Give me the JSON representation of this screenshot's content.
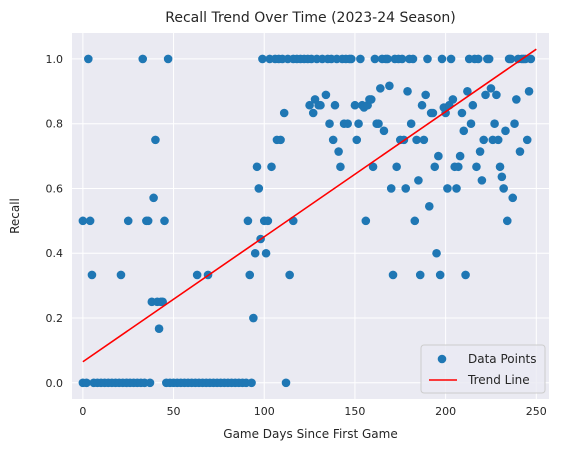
{
  "chart_data": {
    "type": "scatter",
    "title": "Recall Trend Over Time (2023-24 Season)",
    "xlabel": "Game Days Since First Game",
    "ylabel": "Recall",
    "xlim": [
      -6,
      257
    ],
    "ylim": [
      -0.05,
      1.08
    ],
    "xticks": [
      0,
      50,
      100,
      150,
      200,
      250
    ],
    "yticks": [
      0.0,
      0.2,
      0.4,
      0.6,
      0.8,
      1.0
    ],
    "grid": true,
    "legend_position": "lower right",
    "colors": {
      "points": "#1f77b4",
      "trend": "#ff0000",
      "background": "#eaeaf2",
      "grid": "#ffffff"
    },
    "series": [
      {
        "name": "Data Points",
        "kind": "scatter",
        "points": [
          [
            0,
            0.5
          ],
          [
            0,
            0
          ],
          [
            2,
            0
          ],
          [
            3,
            1.0
          ],
          [
            4,
            0.5
          ],
          [
            5,
            0.333
          ],
          [
            6,
            0
          ],
          [
            8,
            0
          ],
          [
            10,
            0
          ],
          [
            12,
            0
          ],
          [
            14,
            0
          ],
          [
            16,
            0
          ],
          [
            18,
            0
          ],
          [
            20,
            0
          ],
          [
            21,
            0.333
          ],
          [
            22,
            0
          ],
          [
            24,
            0
          ],
          [
            25,
            0.5
          ],
          [
            26,
            0
          ],
          [
            28,
            0
          ],
          [
            30,
            0
          ],
          [
            32,
            0
          ],
          [
            33,
            1.0
          ],
          [
            34,
            0
          ],
          [
            35,
            0.5
          ],
          [
            36,
            0.5
          ],
          [
            37,
            0
          ],
          [
            38,
            0.25
          ],
          [
            39,
            0.571
          ],
          [
            40,
            0.75
          ],
          [
            41,
            0.25
          ],
          [
            42,
            0.167
          ],
          [
            43,
            0.25
          ],
          [
            44,
            0.25
          ],
          [
            45,
            0.5
          ],
          [
            46,
            0
          ],
          [
            47,
            1.0
          ],
          [
            48,
            0
          ],
          [
            50,
            0
          ],
          [
            52,
            0
          ],
          [
            54,
            0
          ],
          [
            56,
            0
          ],
          [
            58,
            0
          ],
          [
            60,
            0
          ],
          [
            62,
            0
          ],
          [
            63,
            0.333
          ],
          [
            64,
            0
          ],
          [
            66,
            0
          ],
          [
            68,
            0
          ],
          [
            69,
            0.333
          ],
          [
            70,
            0
          ],
          [
            72,
            0
          ],
          [
            74,
            0
          ],
          [
            76,
            0
          ],
          [
            78,
            0
          ],
          [
            80,
            0
          ],
          [
            82,
            0
          ],
          [
            84,
            0
          ],
          [
            86,
            0
          ],
          [
            88,
            0
          ],
          [
            90,
            0
          ],
          [
            91,
            0.5
          ],
          [
            92,
            0.333
          ],
          [
            93,
            0
          ],
          [
            94,
            0.2
          ],
          [
            95,
            0.4
          ],
          [
            96,
            0.667
          ],
          [
            97,
            0.6
          ],
          [
            98,
            0.444
          ],
          [
            99,
            1.0
          ],
          [
            100,
            0.5
          ],
          [
            101,
            0.4
          ],
          [
            102,
            0.5
          ],
          [
            103,
            1.0
          ],
          [
            104,
            0.667
          ],
          [
            106,
            1.0
          ],
          [
            107,
            0.75
          ],
          [
            108,
            1.0
          ],
          [
            109,
            0.75
          ],
          [
            110,
            1.0
          ],
          [
            111,
            0.833
          ],
          [
            112,
            0
          ],
          [
            113,
            1.0
          ],
          [
            114,
            0.333
          ],
          [
            116,
            1.0
          ],
          [
            116,
            0.5
          ],
          [
            118,
            1.0
          ],
          [
            120,
            1.0
          ],
          [
            122,
            1.0
          ],
          [
            124,
            1.0
          ],
          [
            125,
            0.857
          ],
          [
            126,
            1.0
          ],
          [
            127,
            0.833
          ],
          [
            128,
            0.875
          ],
          [
            129,
            1.0
          ],
          [
            130,
            0.857
          ],
          [
            131,
            0.857
          ],
          [
            132,
            1.0
          ],
          [
            134,
            0.889
          ],
          [
            135,
            1.0
          ],
          [
            136,
            0.8
          ],
          [
            137,
            1.0
          ],
          [
            138,
            0.75
          ],
          [
            139,
            0.857
          ],
          [
            140,
            1.0
          ],
          [
            141,
            0.714
          ],
          [
            142,
            0.667
          ],
          [
            143,
            1.0
          ],
          [
            144,
            0.8
          ],
          [
            145,
            1.0
          ],
          [
            146,
            0.8
          ],
          [
            147,
            1.0
          ],
          [
            148,
            1.0
          ],
          [
            150,
            0.857
          ],
          [
            151,
            0.75
          ],
          [
            152,
            0.8
          ],
          [
            153,
            1.0
          ],
          [
            154,
            0.857
          ],
          [
            155,
            0.85
          ],
          [
            156,
            0.5
          ],
          [
            157,
            0.857
          ],
          [
            158,
            0.875
          ],
          [
            159,
            0.875
          ],
          [
            160,
            0.667
          ],
          [
            161,
            1.0
          ],
          [
            162,
            0.8
          ],
          [
            163,
            0.8
          ],
          [
            164,
            0.909
          ],
          [
            165,
            1.0
          ],
          [
            166,
            0.778
          ],
          [
            167,
            1.0
          ],
          [
            168,
            1.0
          ],
          [
            169,
            0.917
          ],
          [
            170,
            0.6
          ],
          [
            171,
            0.333
          ],
          [
            172,
            1.0
          ],
          [
            173,
            0.667
          ],
          [
            174,
            1.0
          ],
          [
            175,
            0.75
          ],
          [
            176,
            1.0
          ],
          [
            177,
            0.75
          ],
          [
            178,
            0.6
          ],
          [
            179,
            0.9
          ],
          [
            180,
            1.0
          ],
          [
            181,
            0.8
          ],
          [
            182,
            1.0
          ],
          [
            183,
            0.5
          ],
          [
            184,
            0.75
          ],
          [
            185,
            0.625
          ],
          [
            186,
            0.333
          ],
          [
            187,
            0.857
          ],
          [
            188,
            0.75
          ],
          [
            189,
            0.889
          ],
          [
            190,
            1.0
          ],
          [
            191,
            0.545
          ],
          [
            192,
            0.833
          ],
          [
            193,
            0.833
          ],
          [
            194,
            0.667
          ],
          [
            195,
            0.4
          ],
          [
            196,
            0.7
          ],
          [
            197,
            0.333
          ],
          [
            198,
            1.0
          ],
          [
            199,
            0.85
          ],
          [
            200,
            0.833
          ],
          [
            201,
            0.6
          ],
          [
            202,
            0.857
          ],
          [
            203,
            1.0
          ],
          [
            204,
            0.875
          ],
          [
            205,
            0.667
          ],
          [
            206,
            0.6
          ],
          [
            207,
            0.667
          ],
          [
            208,
            0.7
          ],
          [
            209,
            0.833
          ],
          [
            210,
            0.778
          ],
          [
            211,
            0.333
          ],
          [
            212,
            0.9
          ],
          [
            213,
            1.0
          ],
          [
            214,
            0.8
          ],
          [
            215,
            0.857
          ],
          [
            216,
            1.0
          ],
          [
            217,
            0.667
          ],
          [
            218,
            1.0
          ],
          [
            219,
            0.714
          ],
          [
            220,
            0.625
          ],
          [
            221,
            0.75
          ],
          [
            222,
            0.889
          ],
          [
            223,
            1.0
          ],
          [
            224,
            1.0
          ],
          [
            225,
            0.909
          ],
          [
            226,
            0.75
          ],
          [
            227,
            0.8
          ],
          [
            228,
            0.889
          ],
          [
            229,
            0.75
          ],
          [
            230,
            0.667
          ],
          [
            231,
            0.636
          ],
          [
            232,
            0.6
          ],
          [
            233,
            0.778
          ],
          [
            234,
            0.5
          ],
          [
            235,
            1.0
          ],
          [
            236,
            1.0
          ],
          [
            237,
            0.571
          ],
          [
            238,
            0.8
          ],
          [
            239,
            0.875
          ],
          [
            240,
            1.0
          ],
          [
            241,
            0.714
          ],
          [
            242,
            1.0
          ],
          [
            243,
            1.0
          ],
          [
            244,
            1.0
          ],
          [
            245,
            0.75
          ],
          [
            246,
            0.9
          ],
          [
            247,
            1.0
          ]
        ]
      },
      {
        "name": "Trend Line",
        "kind": "line",
        "points": [
          [
            0,
            0.065
          ],
          [
            250,
            1.03
          ]
        ]
      }
    ]
  }
}
